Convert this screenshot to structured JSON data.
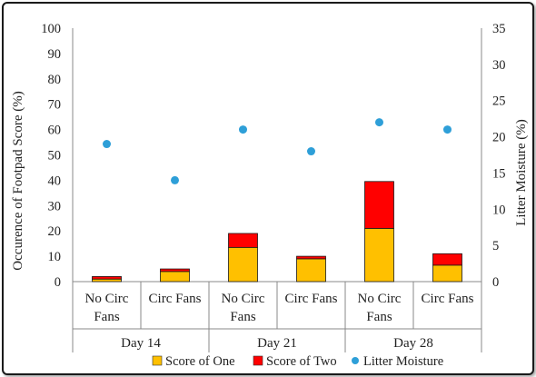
{
  "chart_data": {
    "type": "bar",
    "title": "",
    "ylabel_left": "Occurence of Footpad Score (%)",
    "ylabel_right": "Litter Moisture (%)",
    "ylim_left": [
      0,
      100
    ],
    "yticks_left": [
      0,
      10,
      20,
      30,
      40,
      50,
      60,
      70,
      80,
      90,
      100
    ],
    "ylim_right": [
      0,
      35
    ],
    "yticks_right": [
      0,
      5,
      10,
      15,
      20,
      25,
      30,
      35
    ],
    "categories": [
      {
        "label_line1": "No Circ",
        "label_line2": "Fans",
        "group": "Day 14"
      },
      {
        "label_line1": "Circ Fans",
        "label_line2": "",
        "group": "Day 14"
      },
      {
        "label_line1": "No Circ",
        "label_line2": "Fans",
        "group": "Day 21"
      },
      {
        "label_line1": "Circ Fans",
        "label_line2": "",
        "group": "Day 21"
      },
      {
        "label_line1": "No Circ",
        "label_line2": "Fans",
        "group": "Day 28"
      },
      {
        "label_line1": "Circ Fans",
        "label_line2": "",
        "group": "Day 28"
      }
    ],
    "groups": [
      "Day 14",
      "Day 21",
      "Day 28"
    ],
    "series": [
      {
        "name": "Score of One",
        "kind": "stacked-bar",
        "axis": "left",
        "color": "#FFC000",
        "values": [
          1,
          4,
          13.5,
          9,
          21,
          6.5
        ]
      },
      {
        "name": "Score of Two",
        "kind": "stacked-bar",
        "axis": "left",
        "color": "#FF0000",
        "values": [
          1,
          1,
          5.5,
          1,
          18.5,
          4.5
        ]
      },
      {
        "name": "Litter Moisture",
        "kind": "scatter",
        "axis": "right",
        "color": "#2E9FD8",
        "values": [
          19,
          14,
          21,
          18,
          22,
          21
        ]
      }
    ],
    "legend_position": "bottom",
    "grid": false
  }
}
